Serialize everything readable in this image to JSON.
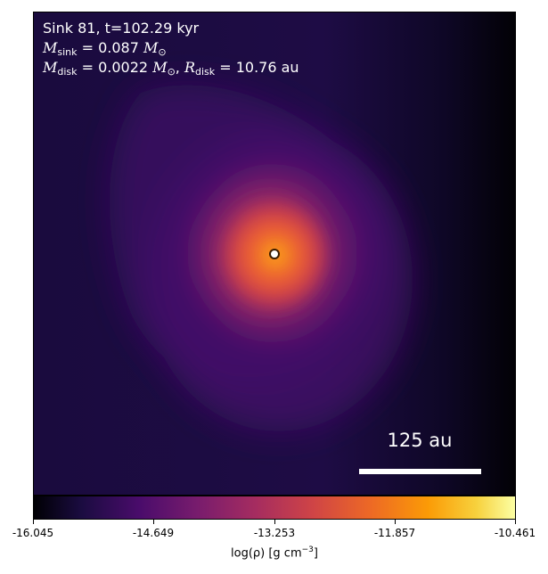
{
  "annotation": {
    "line1": "Sink 81, t=102.29 kyr",
    "m_sink_symbol": "M",
    "m_sink_sub": "sink",
    "m_sink_value": " = 0.087 ",
    "m_sink_unit": "M",
    "m_sink_unit_sub": "⊙",
    "m_disk_symbol": "M",
    "m_disk_sub": "disk",
    "m_disk_value": " = 0.0022 ",
    "m_disk_unit": "M",
    "m_disk_unit_sub": "⊙",
    "r_disk_sep": ", ",
    "r_disk_symbol": "R",
    "r_disk_sub": "disk",
    "r_disk_value": " = 10.76 au"
  },
  "scalebar": {
    "label": "125 au"
  },
  "colorbar": {
    "colormap": "inferno",
    "range": [
      -16.045,
      -10.461
    ],
    "ticks": [
      "-16.045",
      "-14.649",
      "-13.253",
      "-11.857",
      "-10.461"
    ],
    "label_main": "log(ρ) [g cm",
    "label_sup": "−3",
    "label_end": "]"
  }
}
